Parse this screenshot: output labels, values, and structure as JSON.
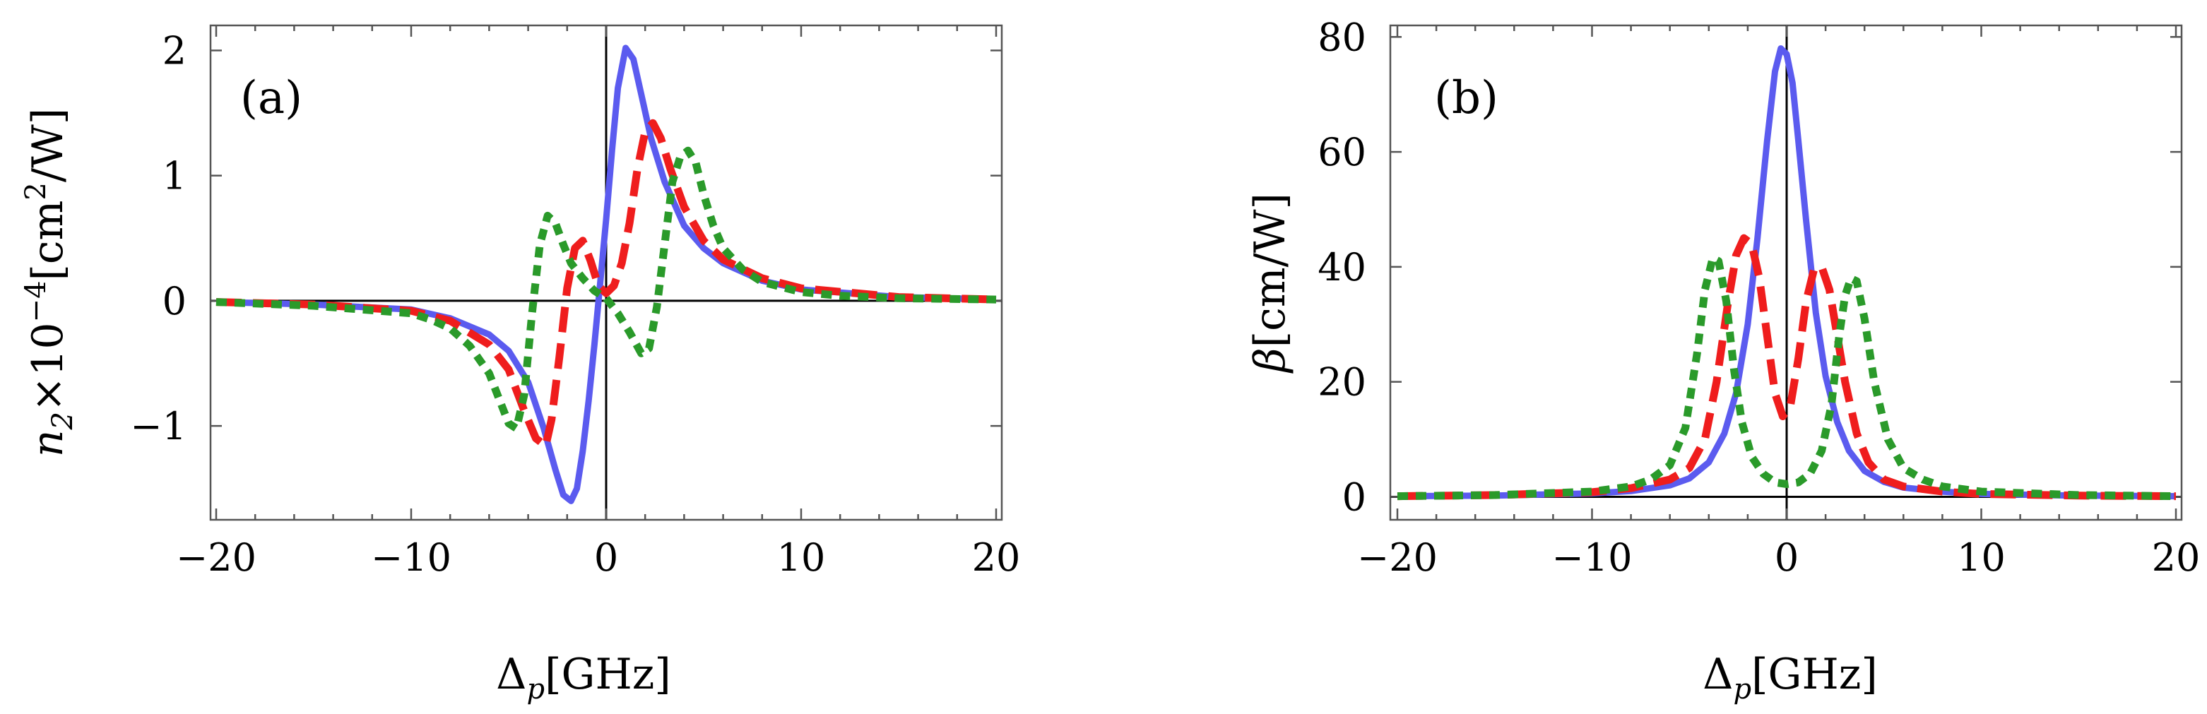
{
  "chart_data": [
    {
      "type": "line",
      "panel_label": "(a)",
      "xlabel": "Δp[GHz]",
      "xlabel_main": "Δ",
      "xlabel_sub": "p",
      "xlabel_unit": "[GHz]",
      "ylabel": "n2×10−4[cm2/W]",
      "ylabel_parts": {
        "n": "n",
        "sub": "2",
        "mult": "×10",
        "exp": "−4",
        "unit_a": "[cm",
        "unit_exp": "2",
        "unit_b": "/W]"
      },
      "xlim": [
        -20,
        20
      ],
      "ylim": [
        -1.75,
        2.2
      ],
      "xticks": [
        -20,
        -10,
        0,
        10,
        20
      ],
      "xtick_labels": [
        "−20",
        "−10",
        "0",
        "10",
        "20"
      ],
      "yticks": [
        -1,
        0,
        1,
        2
      ],
      "ytick_labels": [
        "−1",
        "0",
        "1",
        "2"
      ],
      "series": [
        {
          "style": "solid",
          "color": "#5b5bef",
          "x": [
            -20,
            -15,
            -10,
            -8,
            -6,
            -5,
            -4,
            -3.2,
            -2.6,
            -2.2,
            -1.8,
            -1.5,
            -1.2,
            -0.9,
            -0.6,
            -0.3,
            0,
            0.3,
            0.6,
            1.0,
            1.4,
            1.8,
            2.3,
            3,
            4,
            5,
            6,
            8,
            10,
            15,
            20
          ],
          "y": [
            -0.01,
            -0.03,
            -0.07,
            -0.14,
            -0.27,
            -0.4,
            -0.65,
            -1.02,
            -1.35,
            -1.55,
            -1.6,
            -1.5,
            -1.2,
            -0.8,
            -0.35,
            0.15,
            0.65,
            1.2,
            1.7,
            2.02,
            1.93,
            1.65,
            1.3,
            0.95,
            0.6,
            0.42,
            0.3,
            0.16,
            0.09,
            0.03,
            0.01
          ]
        },
        {
          "style": "dashed",
          "color": "#ef1d1d",
          "x": [
            -20,
            -15,
            -10,
            -8,
            -6,
            -5,
            -4.2,
            -3.6,
            -3.1,
            -2.8,
            -2.4,
            -2.0,
            -1.6,
            -1.2,
            -0.8,
            -0.4,
            0,
            0.4,
            0.8,
            1.2,
            1.6,
            2.0,
            2.4,
            2.8,
            3.3,
            4,
            5,
            6,
            8,
            10,
            15,
            20
          ],
          "y": [
            -0.01,
            -0.03,
            -0.08,
            -0.16,
            -0.35,
            -0.55,
            -0.88,
            -1.1,
            -1.16,
            -0.95,
            -0.45,
            0.1,
            0.42,
            0.48,
            0.32,
            0.12,
            0.06,
            0.12,
            0.3,
            0.62,
            1.05,
            1.35,
            1.42,
            1.3,
            1.05,
            0.75,
            0.48,
            0.33,
            0.18,
            0.1,
            0.03,
            0.01
          ]
        },
        {
          "style": "dotted",
          "color": "#2a9a2a",
          "x": [
            -20,
            -15,
            -10,
            -9,
            -8,
            -7,
            -6,
            -5.5,
            -5,
            -4.6,
            -4.2,
            -3.8,
            -3.4,
            -3.0,
            -2.6,
            -2.2,
            -1.8,
            -1.2,
            -0.6,
            0,
            0.6,
            1.2,
            1.8,
            2.2,
            2.6,
            3.0,
            3.4,
            3.8,
            4.2,
            4.6,
            5,
            5.5,
            6,
            7,
            8,
            10,
            12,
            15,
            20
          ],
          "y": [
            -0.01,
            -0.04,
            -0.1,
            -0.15,
            -0.22,
            -0.36,
            -0.58,
            -0.78,
            -0.98,
            -1.02,
            -0.75,
            -0.1,
            0.45,
            0.68,
            0.62,
            0.45,
            0.3,
            0.18,
            0.08,
            0.02,
            -0.1,
            -0.25,
            -0.42,
            -0.38,
            -0.05,
            0.45,
            0.95,
            1.15,
            1.2,
            1.1,
            0.85,
            0.6,
            0.42,
            0.25,
            0.15,
            0.07,
            0.04,
            0.02,
            0.01
          ]
        }
      ]
    },
    {
      "type": "line",
      "panel_label": "(b)",
      "xlabel": "Δp[GHz]",
      "xlabel_main": "Δ",
      "xlabel_sub": "p",
      "xlabel_unit": "[GHz]",
      "ylabel": "β[cm/W]",
      "ylabel_parts": {
        "beta": "β",
        "unit": "[cm/W]"
      },
      "xlim": [
        -20,
        20
      ],
      "ylim": [
        -4,
        82
      ],
      "xticks": [
        -20,
        -10,
        0,
        10,
        20
      ],
      "xtick_labels": [
        "−20",
        "−10",
        "0",
        "10",
        "20"
      ],
      "yticks": [
        0,
        20,
        40,
        60,
        80
      ],
      "ytick_labels": [
        "0",
        "20",
        "40",
        "60",
        "80"
      ],
      "series": [
        {
          "style": "solid",
          "color": "#5b5bef",
          "x": [
            -20,
            -15,
            -10,
            -8,
            -6,
            -5,
            -4,
            -3.2,
            -2.6,
            -2.0,
            -1.5,
            -1.0,
            -0.6,
            -0.3,
            0,
            0.3,
            0.6,
            1.0,
            1.5,
            2.0,
            2.6,
            3.2,
            4,
            5,
            6,
            8,
            10,
            15,
            20
          ],
          "y": [
            0.1,
            0.2,
            0.6,
            1.0,
            2.0,
            3.2,
            6.0,
            11.0,
            18.0,
            30.0,
            45.0,
            62.0,
            74.0,
            78.0,
            77.0,
            72.0,
            62.0,
            48.0,
            32.0,
            21.0,
            13.0,
            8.0,
            4.5,
            2.6,
            1.6,
            0.9,
            0.5,
            0.2,
            0.1
          ]
        },
        {
          "style": "dashed",
          "color": "#ef1d1d",
          "x": [
            -20,
            -15,
            -10,
            -8,
            -6,
            -5,
            -4.2,
            -3.6,
            -3.0,
            -2.6,
            -2.2,
            -1.8,
            -1.4,
            -1.0,
            -0.6,
            -0.2,
            0.2,
            0.6,
            1.0,
            1.4,
            1.8,
            2.2,
            2.6,
            3.0,
            3.6,
            4.2,
            5,
            6,
            8,
            10,
            15,
            20
          ],
          "y": [
            0.1,
            0.3,
            0.8,
            1.5,
            3.0,
            5.0,
            10.0,
            20.0,
            34.0,
            42.0,
            45.0,
            44.0,
            38.0,
            28.0,
            18.0,
            14.0,
            16.0,
            24.0,
            34.0,
            39.5,
            40.0,
            36.0,
            28.0,
            20.0,
            11.0,
            6.0,
            3.0,
            1.8,
            0.9,
            0.5,
            0.2,
            0.1
          ]
        },
        {
          "style": "dotted",
          "color": "#2a9a2a",
          "x": [
            -20,
            -15,
            -10,
            -8,
            -7,
            -6,
            -5.2,
            -4.6,
            -4.2,
            -3.8,
            -3.5,
            -3.1,
            -2.7,
            -2.3,
            -1.8,
            -1.2,
            -0.6,
            0,
            0.6,
            1.2,
            1.8,
            2.3,
            2.7,
            3.0,
            3.3,
            3.6,
            4.0,
            4.5,
            5.2,
            6,
            7,
            8,
            10,
            15,
            20
          ],
          "y": [
            0.1,
            0.3,
            0.9,
            1.8,
            3.0,
            5.5,
            12.0,
            25.0,
            36.0,
            41.5,
            41.0,
            34.0,
            22.0,
            13.0,
            7.0,
            4.0,
            2.5,
            2.2,
            2.5,
            4.0,
            8.0,
            16.0,
            28.0,
            35.0,
            38.0,
            37.5,
            31.0,
            20.0,
            10.0,
            5.0,
            3.0,
            1.8,
            0.9,
            0.3,
            0.1
          ]
        }
      ]
    }
  ]
}
